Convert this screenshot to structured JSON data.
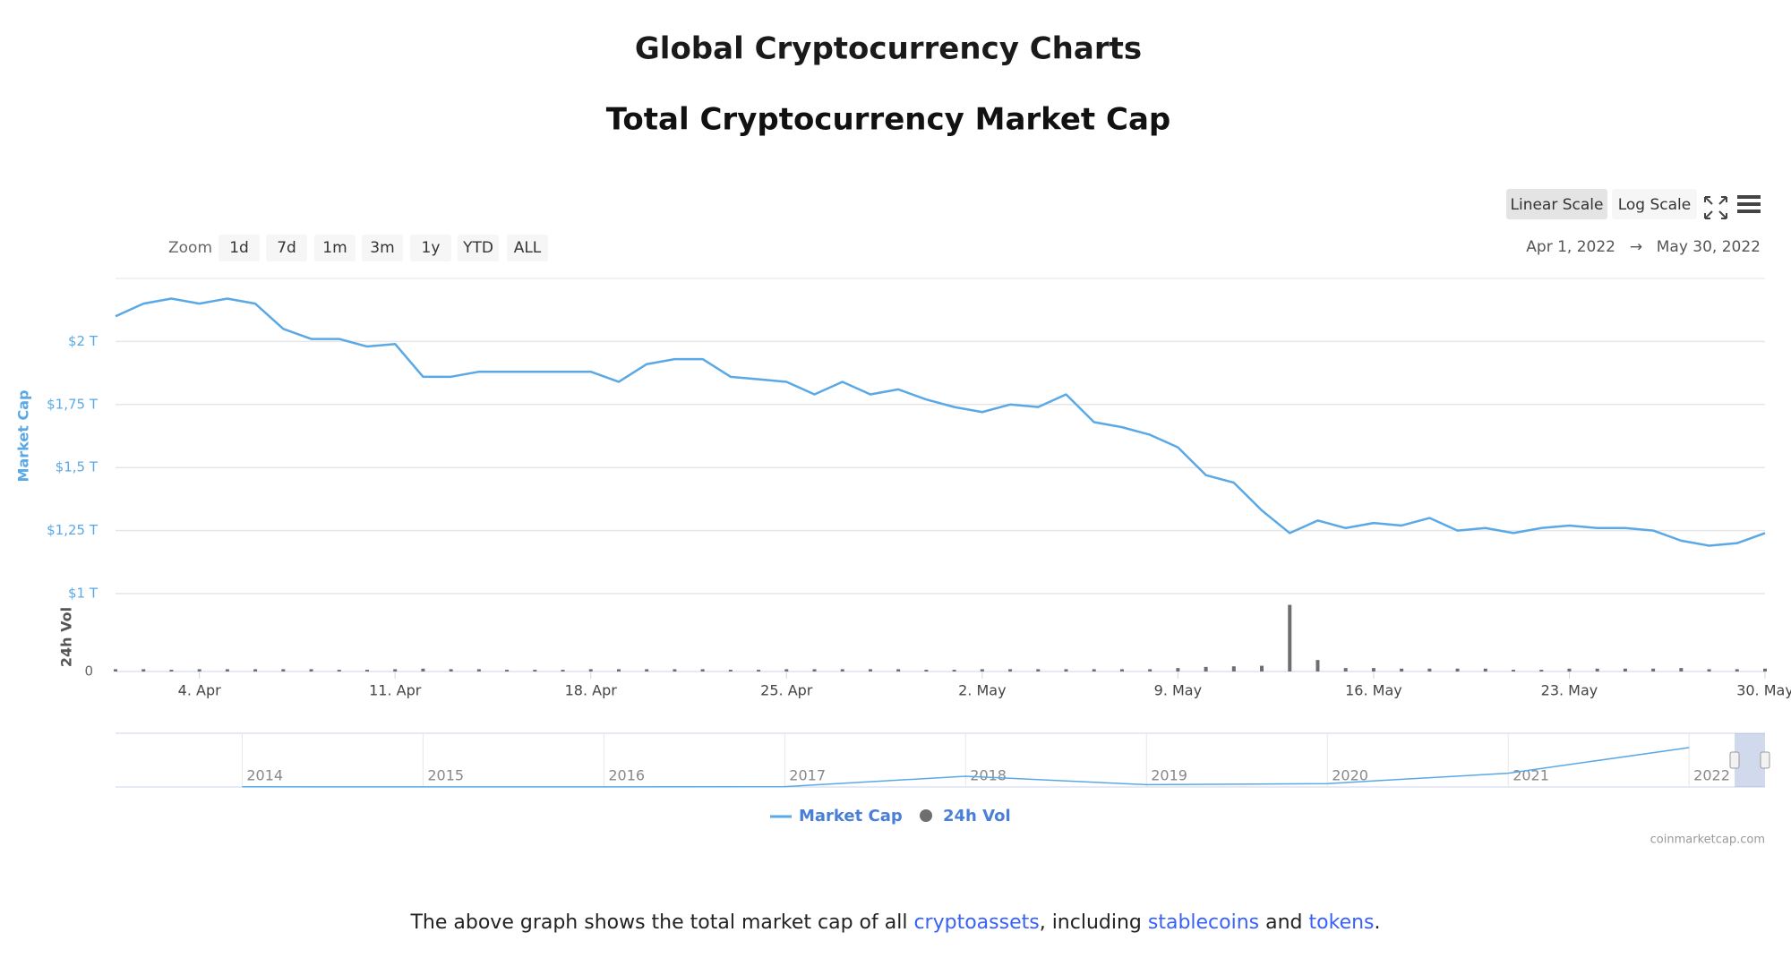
{
  "header": {
    "title": "Global Cryptocurrency Charts"
  },
  "chart_data": {
    "type": "line",
    "title": "Total Cryptocurrency Market Cap",
    "x": [
      "2022-04-01",
      "2022-04-02",
      "2022-04-03",
      "2022-04-04",
      "2022-04-05",
      "2022-04-06",
      "2022-04-07",
      "2022-04-08",
      "2022-04-09",
      "2022-04-10",
      "2022-04-11",
      "2022-04-12",
      "2022-04-13",
      "2022-04-14",
      "2022-04-15",
      "2022-04-16",
      "2022-04-17",
      "2022-04-18",
      "2022-04-19",
      "2022-04-20",
      "2022-04-21",
      "2022-04-22",
      "2022-04-23",
      "2022-04-24",
      "2022-04-25",
      "2022-04-26",
      "2022-04-27",
      "2022-04-28",
      "2022-04-29",
      "2022-04-30",
      "2022-05-01",
      "2022-05-02",
      "2022-05-03",
      "2022-05-04",
      "2022-05-05",
      "2022-05-06",
      "2022-05-07",
      "2022-05-08",
      "2022-05-09",
      "2022-05-10",
      "2022-05-11",
      "2022-05-12",
      "2022-05-13",
      "2022-05-14",
      "2022-05-15",
      "2022-05-16",
      "2022-05-17",
      "2022-05-18",
      "2022-05-19",
      "2022-05-20",
      "2022-05-21",
      "2022-05-22",
      "2022-05-23",
      "2022-05-24",
      "2022-05-25",
      "2022-05-26",
      "2022-05-27",
      "2022-05-28",
      "2022-05-29",
      "2022-05-30"
    ],
    "series": [
      {
        "name": "Market Cap",
        "color": "#5aa9e6",
        "values": [
          2100000000000.0,
          2150000000000.0,
          2170000000000.0,
          2150000000000.0,
          2170000000000.0,
          2150000000000.0,
          2050000000000.0,
          2010000000000.0,
          2010000000000.0,
          1980000000000.0,
          1990000000000.0,
          1860000000000.0,
          1860000000000.0,
          1880000000000.0,
          1880000000000.0,
          1880000000000.0,
          1880000000000.0,
          1880000000000.0,
          1840000000000.0,
          1910000000000.0,
          1930000000000.0,
          1930000000000.0,
          1860000000000.0,
          1850000000000.0,
          1840000000000.0,
          1790000000000.0,
          1840000000000.0,
          1790000000000.0,
          1810000000000.0,
          1770000000000.0,
          1740000000000.0,
          1720000000000.0,
          1750000000000.0,
          1740000000000.0,
          1790000000000.0,
          1680000000000.0,
          1660000000000.0,
          1630000000000.0,
          1580000000000.0,
          1470000000000.0,
          1440000000000.0,
          1330000000000.0,
          1240000000000.0,
          1290000000000.0,
          1260000000000.0,
          1280000000000.0,
          1270000000000.0,
          1300000000000.0,
          1250000000000.0,
          1260000000000.0,
          1240000000000.0,
          1260000000000.0,
          1270000000000.0,
          1260000000000.0,
          1260000000000.0,
          1250000000000.0,
          1210000000000.0,
          1190000000000.0,
          1200000000000.0,
          1240000000000.0
        ]
      },
      {
        "name": "24h Vol",
        "color": "#6e6e6e",
        "axis": "y2",
        "values": [
          20000000000.0,
          20000000000.0,
          15000000000.0,
          20000000000.0,
          20000000000.0,
          20000000000.0,
          20000000000.0,
          20000000000.0,
          15000000000.0,
          15000000000.0,
          20000000000.0,
          25000000000.0,
          20000000000.0,
          20000000000.0,
          15000000000.0,
          15000000000.0,
          15000000000.0,
          20000000000.0,
          20000000000.0,
          20000000000.0,
          20000000000.0,
          20000000000.0,
          15000000000.0,
          15000000000.0,
          20000000000.0,
          20000000000.0,
          20000000000.0,
          20000000000.0,
          20000000000.0,
          15000000000.0,
          15000000000.0,
          20000000000.0,
          20000000000.0,
          20000000000.0,
          20000000000.0,
          20000000000.0,
          20000000000.0,
          20000000000.0,
          30000000000.0,
          40000000000.0,
          45000000000.0,
          50000000000.0,
          580000000000.0,
          100000000000.0,
          30000000000.0,
          30000000000.0,
          25000000000.0,
          25000000000.0,
          25000000000.0,
          25000000000.0,
          15000000000.0,
          15000000000.0,
          25000000000.0,
          25000000000.0,
          25000000000.0,
          25000000000.0,
          30000000000.0,
          20000000000.0,
          20000000000.0,
          25000000000.0
        ]
      }
    ],
    "xlim": [
      "2022-04-01",
      "2022-05-30"
    ],
    "xticks": [
      {
        "value": "2022-04-04",
        "label": "4. Apr"
      },
      {
        "value": "2022-04-11",
        "label": "11. Apr"
      },
      {
        "value": "2022-04-18",
        "label": "18. Apr"
      },
      {
        "value": "2022-04-25",
        "label": "25. Apr"
      },
      {
        "value": "2022-05-02",
        "label": "2. May"
      },
      {
        "value": "2022-05-09",
        "label": "9. May"
      },
      {
        "value": "2022-05-16",
        "label": "16. May"
      },
      {
        "value": "2022-05-23",
        "label": "23. May"
      },
      {
        "value": "2022-05-30",
        "label": "30. May"
      }
    ],
    "ylim": [
      1000000000000.0,
      2250000000000.0
    ],
    "yticks": [
      {
        "value": 1000000000000.0,
        "label": "$1 T"
      },
      {
        "value": 1250000000000.0,
        "label": "$1,25 T"
      },
      {
        "value": 1500000000000.0,
        "label": "$1,5 T"
      },
      {
        "value": 1750000000000.0,
        "label": "$1,75 T"
      },
      {
        "value": 2000000000000.0,
        "label": "$2 T"
      }
    ],
    "ylabel": "Market Cap",
    "y2label": "24h Vol",
    "y2lim": [
      0,
      600000000000.0
    ],
    "y2ticks": [
      0
    ],
    "grid": true,
    "log_scale": false,
    "legend": "bottom",
    "scale_buttons": [
      "Linear Scale",
      "Log Scale"
    ],
    "zoom": {
      "label": "Zoom",
      "options": [
        "1d",
        "7d",
        "1m",
        "3m",
        "1y",
        "YTD",
        "ALL"
      ]
    },
    "date_range": {
      "from": "Apr 1, 2022",
      "arrow": "→",
      "to": "May 30, 2022"
    },
    "navigator": {
      "x": [
        2014,
        2015,
        2016,
        2017,
        2018,
        2019,
        2020,
        2021,
        2022
      ],
      "values": [
        10000000000.0,
        5000000000.0,
        7000000000.0,
        18000000000.0,
        600000000000.0,
        130000000000.0,
        190000000000.0,
        770000000000.0,
        2200000000000.0
      ],
      "xlim": [
        2013.3,
        2022.42
      ],
      "ylim": [
        0,
        3000000000000.0
      ],
      "xticks": [
        2014,
        2015,
        2016,
        2017,
        2018,
        2019,
        2020,
        2021,
        2022
      ]
    },
    "credit": "coinmarketcap.com"
  },
  "footer": {
    "segments": [
      "The above graph shows the total market cap of all ",
      "cryptoassets",
      ", including ",
      "stablecoins",
      " and ",
      "tokens",
      "."
    ]
  }
}
